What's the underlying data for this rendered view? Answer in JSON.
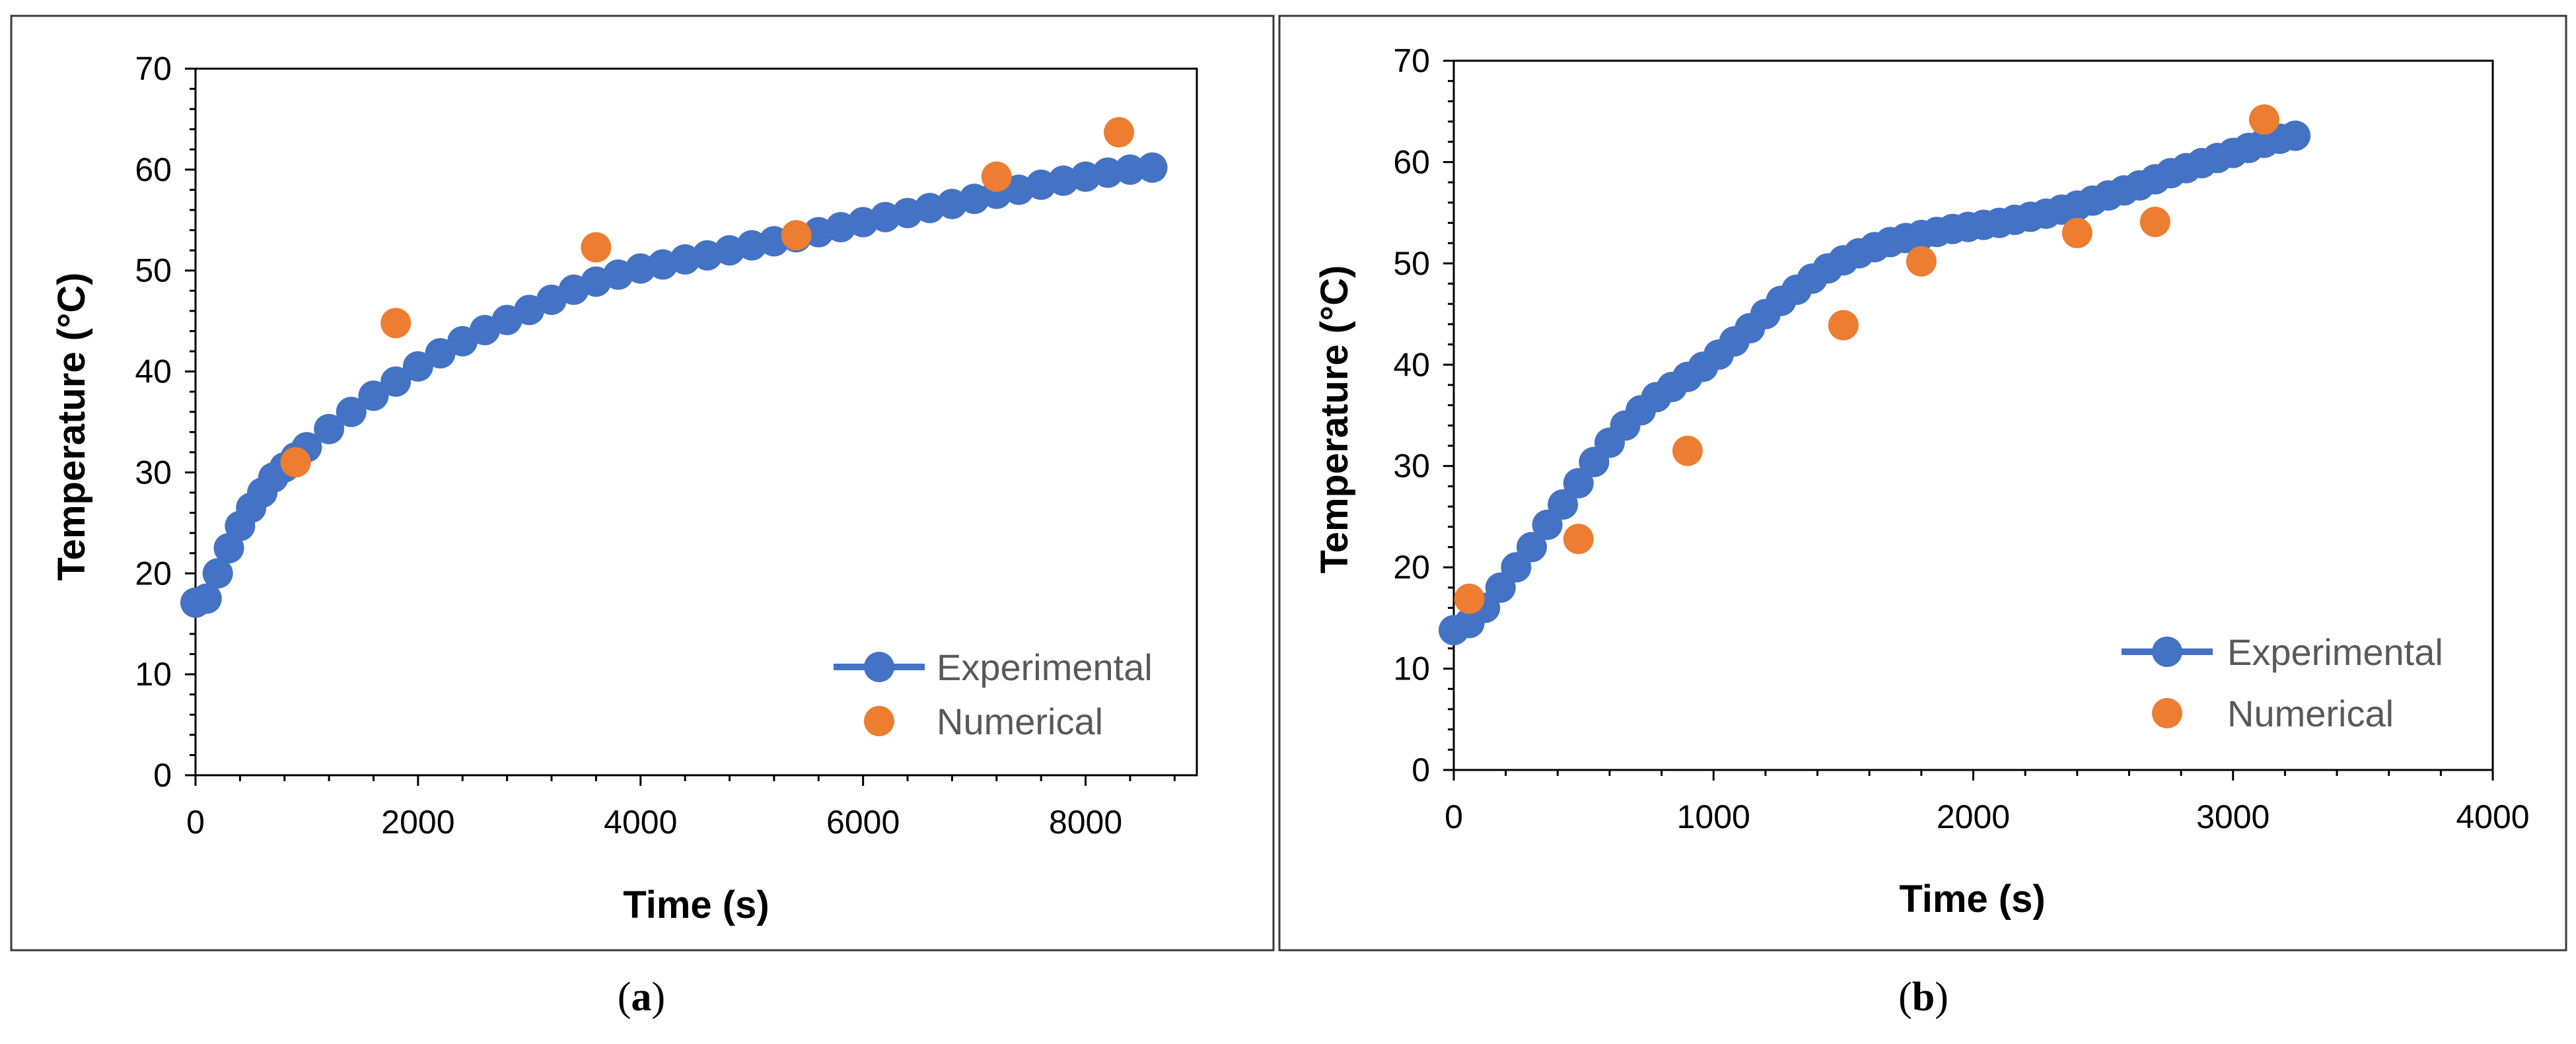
{
  "chart_data": [
    {
      "type": "scatter",
      "panel_label": "a",
      "xlabel": "Time (s)",
      "ylabel": "Temperature (°C)",
      "xlim": [
        0,
        9000
      ],
      "ylim": [
        0,
        70
      ],
      "xticks": [
        0,
        2000,
        4000,
        6000,
        8000
      ],
      "yticks": [
        0,
        10,
        20,
        30,
        40,
        50,
        60,
        70
      ],
      "legend_position": "bottom-right",
      "series": [
        {
          "name": "Experimental",
          "color": "#4472C4",
          "style": "line-with-markers",
          "x": [
            0,
            100,
            200,
            300,
            400,
            500,
            600,
            700,
            800,
            900,
            1000,
            1200,
            1400,
            1600,
            1800,
            2000,
            2200,
            2400,
            2600,
            2800,
            3000,
            3200,
            3400,
            3600,
            3800,
            4000,
            4200,
            4400,
            4600,
            4800,
            5000,
            5200,
            5400,
            5600,
            5800,
            6000,
            6200,
            6400,
            6600,
            6800,
            7000,
            7200,
            7400,
            7600,
            7800,
            8000,
            8200,
            8400,
            8600
          ],
          "y": [
            17.1,
            17.5,
            20.0,
            22.5,
            24.7,
            26.5,
            28.0,
            29.5,
            30.5,
            31.5,
            32.5,
            34.3,
            36.0,
            37.6,
            39.0,
            40.5,
            41.8,
            43.0,
            44.1,
            45.1,
            46.1,
            47.1,
            48.1,
            48.9,
            49.6,
            50.2,
            50.6,
            51.1,
            51.5,
            52.0,
            52.5,
            52.9,
            53.3,
            53.8,
            54.3,
            54.8,
            55.3,
            55.7,
            56.2,
            56.6,
            57.1,
            57.6,
            58.0,
            58.5,
            58.9,
            59.3,
            59.7,
            60.0,
            60.2
          ]
        },
        {
          "name": "Numerical",
          "color": "#ED7D31",
          "style": "markers",
          "x": [
            900,
            1800,
            3600,
            5400,
            7200,
            8300
          ],
          "y": [
            31.0,
            44.8,
            52.3,
            53.5,
            59.3,
            63.7
          ]
        }
      ]
    },
    {
      "type": "scatter",
      "panel_label": "b",
      "xlabel": "Time (s)",
      "ylabel": "Temperature (°C)",
      "xlim": [
        0,
        4000
      ],
      "ylim": [
        0,
        70
      ],
      "xticks": [
        0,
        1000,
        2000,
        3000,
        4000
      ],
      "yticks": [
        0,
        10,
        20,
        30,
        40,
        50,
        60,
        70
      ],
      "legend_position": "bottom-right",
      "series": [
        {
          "name": "Experimental",
          "color": "#4472C4",
          "style": "line-with-markers",
          "x": [
            0,
            60,
            120,
            180,
            240,
            300,
            360,
            420,
            480,
            540,
            600,
            660,
            720,
            780,
            840,
            900,
            960,
            1020,
            1080,
            1140,
            1200,
            1260,
            1320,
            1380,
            1440,
            1500,
            1560,
            1620,
            1680,
            1740,
            1800,
            1860,
            1920,
            1980,
            2040,
            2100,
            2160,
            2220,
            2280,
            2340,
            2400,
            2460,
            2520,
            2580,
            2640,
            2700,
            2760,
            2820,
            2880,
            2940,
            3000,
            3060,
            3120,
            3180,
            3240
          ],
          "y": [
            13.8,
            14.5,
            16.0,
            18.0,
            20.0,
            22.0,
            24.2,
            26.2,
            28.3,
            30.4,
            32.3,
            34.0,
            35.5,
            36.8,
            37.8,
            38.8,
            39.8,
            41.0,
            42.3,
            43.6,
            45.0,
            46.3,
            47.4,
            48.5,
            49.5,
            50.3,
            51.0,
            51.6,
            52.1,
            52.5,
            52.8,
            53.1,
            53.4,
            53.6,
            53.8,
            54.0,
            54.3,
            54.6,
            54.9,
            55.3,
            55.7,
            56.2,
            56.7,
            57.2,
            57.7,
            58.3,
            58.9,
            59.4,
            59.9,
            60.4,
            60.9,
            61.4,
            61.9,
            62.3,
            62.6
          ]
        },
        {
          "name": "Numerical",
          "color": "#ED7D31",
          "style": "markers",
          "x": [
            60,
            480,
            900,
            1500,
            1800,
            2400,
            2700,
            3120
          ],
          "y": [
            16.9,
            22.8,
            31.5,
            43.9,
            50.2,
            53.0,
            54.1,
            64.2
          ]
        }
      ]
    }
  ],
  "captions": {
    "a": {
      "open": "(",
      "letter": "a",
      "close": ")"
    },
    "b": {
      "open": "(",
      "letter": "b",
      "close": ")"
    }
  }
}
